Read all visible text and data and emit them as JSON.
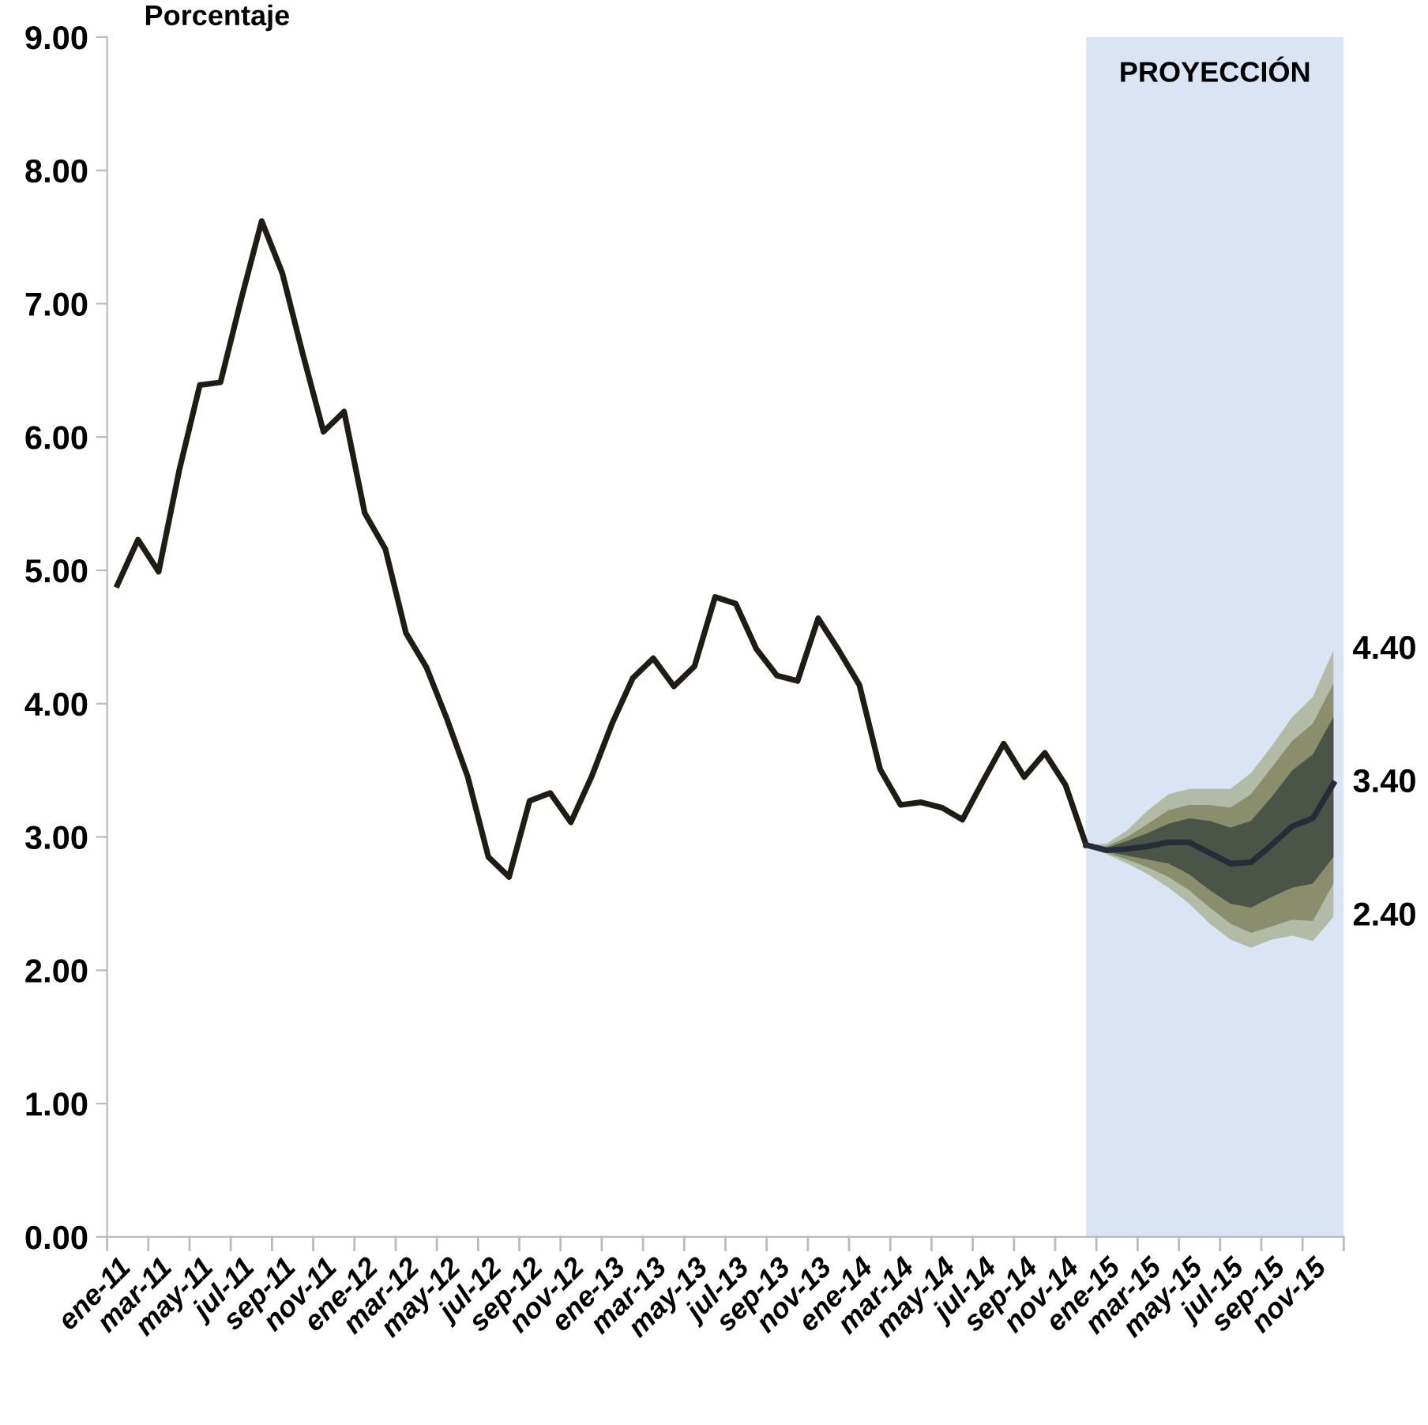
{
  "chart_data": {
    "type": "line",
    "ylabel": "Porcentaje",
    "categories": [
      "ene-11",
      null,
      "mar-11",
      null,
      "may-11",
      null,
      "jul-11",
      null,
      "sep-11",
      null,
      "nov-11",
      null,
      "ene-12",
      null,
      "mar-12",
      null,
      "may-12",
      null,
      "jul-12",
      null,
      "sep-12",
      null,
      "nov-12",
      null,
      "ene-13",
      null,
      "mar-13",
      null,
      "may-13",
      null,
      "jul-13",
      null,
      "sep-13",
      null,
      "nov-13",
      null,
      "ene-14",
      null,
      "mar-14",
      null,
      "may-14",
      null,
      "jul-14",
      null,
      "sep-14",
      null,
      "nov-14",
      null,
      "ene-15",
      null,
      "mar-15",
      null,
      "may-15",
      null,
      "jul-15",
      null,
      "sep-15",
      null,
      "nov-15",
      null
    ],
    "series": [
      {
        "color": "#1f1c16",
        "values": [
          4.89,
          5.23,
          4.99,
          5.75,
          6.39,
          6.41,
          7.03,
          7.62,
          7.23,
          6.62,
          6.04,
          6.19,
          5.43,
          5.16,
          4.53,
          4.27,
          3.88,
          3.45,
          2.85,
          2.7,
          3.27,
          3.33,
          3.11,
          3.45,
          3.85,
          4.19,
          4.34,
          4.13,
          4.28,
          4.8,
          4.75,
          4.41,
          4.21,
          4.17,
          4.64,
          4.4,
          4.14,
          3.51,
          3.24,
          3.26,
          3.22,
          3.13,
          3.42,
          3.7,
          3.45,
          3.63,
          3.39,
          2.94,
          null,
          null,
          null,
          null,
          null,
          null,
          null,
          null,
          null,
          null,
          null,
          null
        ]
      },
      {
        "color": "#b3baa5",
        "values": [
          null,
          null,
          null,
          null,
          null,
          null,
          null,
          null,
          null,
          null,
          null,
          null,
          null,
          null,
          null,
          null,
          null,
          null,
          null,
          null,
          null,
          null,
          null,
          null,
          null,
          null,
          null,
          null,
          null,
          null,
          null,
          null,
          null,
          null,
          null,
          null,
          null,
          null,
          null,
          null,
          null,
          null,
          null,
          null,
          null,
          null,
          null,
          null,
          null,
          null,
          null,
          null,
          null,
          null,
          null,
          null,
          null,
          null,
          null,
          null
        ],
        "upper": [
          null,
          null,
          null,
          null,
          null,
          null,
          null,
          null,
          null,
          null,
          null,
          null,
          null,
          null,
          null,
          null,
          null,
          null,
          null,
          null,
          null,
          null,
          null,
          null,
          null,
          null,
          null,
          null,
          null,
          null,
          null,
          null,
          null,
          null,
          null,
          null,
          null,
          null,
          null,
          null,
          null,
          null,
          null,
          null,
          null,
          null,
          null,
          2.94,
          2.95,
          3.05,
          3.2,
          3.32,
          3.36,
          3.36,
          3.36,
          3.48,
          3.68,
          3.9,
          4.05,
          4.4
        ],
        "lower": [
          null,
          null,
          null,
          null,
          null,
          null,
          null,
          null,
          null,
          null,
          null,
          null,
          null,
          null,
          null,
          null,
          null,
          null,
          null,
          null,
          null,
          null,
          null,
          null,
          null,
          null,
          null,
          null,
          null,
          null,
          null,
          null,
          null,
          null,
          null,
          null,
          null,
          null,
          null,
          null,
          null,
          null,
          null,
          null,
          null,
          null,
          null,
          2.94,
          2.87,
          2.8,
          2.72,
          2.62,
          2.5,
          2.35,
          2.23,
          2.17,
          2.23,
          2.26,
          2.22,
          2.4
        ]
      },
      {
        "color": "#8b8e6d",
        "values": [
          null,
          null,
          null,
          null,
          null,
          null,
          null,
          null,
          null,
          null,
          null,
          null,
          null,
          null,
          null,
          null,
          null,
          null,
          null,
          null,
          null,
          null,
          null,
          null,
          null,
          null,
          null,
          null,
          null,
          null,
          null,
          null,
          null,
          null,
          null,
          null,
          null,
          null,
          null,
          null,
          null,
          null,
          null,
          null,
          null,
          null,
          null,
          null,
          null,
          null,
          null,
          null,
          null,
          null,
          null,
          null,
          null,
          null,
          null,
          null
        ],
        "upper": [
          null,
          null,
          null,
          null,
          null,
          null,
          null,
          null,
          null,
          null,
          null,
          null,
          null,
          null,
          null,
          null,
          null,
          null,
          null,
          null,
          null,
          null,
          null,
          null,
          null,
          null,
          null,
          null,
          null,
          null,
          null,
          null,
          null,
          null,
          null,
          null,
          null,
          null,
          null,
          null,
          null,
          null,
          null,
          null,
          null,
          null,
          null,
          2.94,
          2.93,
          3.0,
          3.1,
          3.2,
          3.24,
          3.24,
          3.22,
          3.32,
          3.52,
          3.72,
          3.85,
          4.15
        ],
        "lower": [
          null,
          null,
          null,
          null,
          null,
          null,
          null,
          null,
          null,
          null,
          null,
          null,
          null,
          null,
          null,
          null,
          null,
          null,
          null,
          null,
          null,
          null,
          null,
          null,
          null,
          null,
          null,
          null,
          null,
          null,
          null,
          null,
          null,
          null,
          null,
          null,
          null,
          null,
          null,
          null,
          null,
          null,
          null,
          null,
          null,
          null,
          null,
          2.94,
          2.88,
          2.83,
          2.77,
          2.7,
          2.6,
          2.47,
          2.35,
          2.28,
          2.33,
          2.38,
          2.37,
          2.65
        ]
      },
      {
        "color": "#4a5447",
        "values": [
          null,
          null,
          null,
          null,
          null,
          null,
          null,
          null,
          null,
          null,
          null,
          null,
          null,
          null,
          null,
          null,
          null,
          null,
          null,
          null,
          null,
          null,
          null,
          null,
          null,
          null,
          null,
          null,
          null,
          null,
          null,
          null,
          null,
          null,
          null,
          null,
          null,
          null,
          null,
          null,
          null,
          null,
          null,
          null,
          null,
          null,
          null,
          null,
          null,
          null,
          null,
          null,
          null,
          null,
          null,
          null,
          null,
          null,
          null,
          null
        ],
        "upper": [
          null,
          null,
          null,
          null,
          null,
          null,
          null,
          null,
          null,
          null,
          null,
          null,
          null,
          null,
          null,
          null,
          null,
          null,
          null,
          null,
          null,
          null,
          null,
          null,
          null,
          null,
          null,
          null,
          null,
          null,
          null,
          null,
          null,
          null,
          null,
          null,
          null,
          null,
          null,
          null,
          null,
          null,
          null,
          null,
          null,
          null,
          null,
          2.94,
          2.92,
          2.97,
          3.03,
          3.1,
          3.14,
          3.12,
          3.07,
          3.12,
          3.3,
          3.5,
          3.62,
          3.9
        ],
        "lower": [
          null,
          null,
          null,
          null,
          null,
          null,
          null,
          null,
          null,
          null,
          null,
          null,
          null,
          null,
          null,
          null,
          null,
          null,
          null,
          null,
          null,
          null,
          null,
          null,
          null,
          null,
          null,
          null,
          null,
          null,
          null,
          null,
          null,
          null,
          null,
          null,
          null,
          null,
          null,
          null,
          null,
          null,
          null,
          null,
          null,
          null,
          null,
          2.94,
          2.89,
          2.86,
          2.83,
          2.8,
          2.72,
          2.6,
          2.5,
          2.47,
          2.55,
          2.62,
          2.65,
          2.85
        ]
      },
      {
        "color": "#262d38",
        "values": [
          null,
          null,
          null,
          null,
          null,
          null,
          null,
          null,
          null,
          null,
          null,
          null,
          null,
          null,
          null,
          null,
          null,
          null,
          null,
          null,
          null,
          null,
          null,
          null,
          null,
          null,
          null,
          null,
          null,
          null,
          null,
          null,
          null,
          null,
          null,
          null,
          null,
          null,
          null,
          null,
          null,
          null,
          null,
          null,
          null,
          null,
          null,
          2.94,
          2.9,
          2.91,
          2.93,
          2.96,
          2.96,
          2.88,
          2.8,
          2.81,
          2.94,
          3.08,
          3.14,
          3.4
        ]
      }
    ],
    "ylim": [
      0,
      9
    ],
    "yticks": [
      {
        "value": 0,
        "label": "0.00"
      },
      {
        "value": 1,
        "label": "1.00"
      },
      {
        "value": 2,
        "label": "2.00"
      },
      {
        "value": 3,
        "label": "3.00"
      },
      {
        "value": 4,
        "label": "4.00"
      },
      {
        "value": 5,
        "label": "5.00"
      },
      {
        "value": 6,
        "label": "6.00"
      },
      {
        "value": 7,
        "label": "7.00"
      },
      {
        "value": 8,
        "label": "8.00"
      },
      {
        "value": 9,
        "label": "9.00"
      }
    ],
    "annotations": [
      "PROYECCIÓN",
      "4.40",
      "3.40",
      "2.40"
    ],
    "grid": false,
    "legend": false,
    "marker": "none",
    "line_style": "solid"
  }
}
